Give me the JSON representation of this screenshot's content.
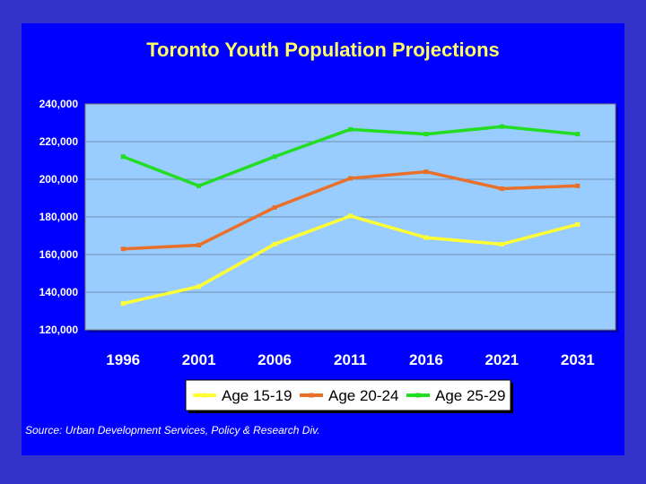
{
  "chart_data": {
    "type": "line",
    "title": "Toronto Youth Population Projections",
    "categories": [
      "1996",
      "2001",
      "2006",
      "2011",
      "2016",
      "2021",
      "2031"
    ],
    "series": [
      {
        "name": "Age 15-19",
        "color": "#ffff33",
        "values": [
          134000,
          143000,
          165500,
          180500,
          169000,
          165500,
          176000
        ]
      },
      {
        "name": "Age 20-24",
        "color": "#e8702a",
        "values": [
          163000,
          165000,
          185000,
          200500,
          204000,
          195000,
          196500
        ]
      },
      {
        "name": "Age 25-29",
        "color": "#22dd22",
        "values": [
          212000,
          196500,
          212000,
          226500,
          224000,
          228000,
          224000
        ]
      }
    ],
    "y_ticks": [
      "240,000",
      "220,000",
      "200,000",
      "180,000",
      "160,000",
      "140,000",
      "120,000"
    ],
    "ylim": [
      120000,
      240000
    ],
    "grid": true,
    "legend_position": "bottom",
    "plot_background": "#99ccff",
    "source": "Source: Urban Development Services, Policy & Research Div."
  }
}
